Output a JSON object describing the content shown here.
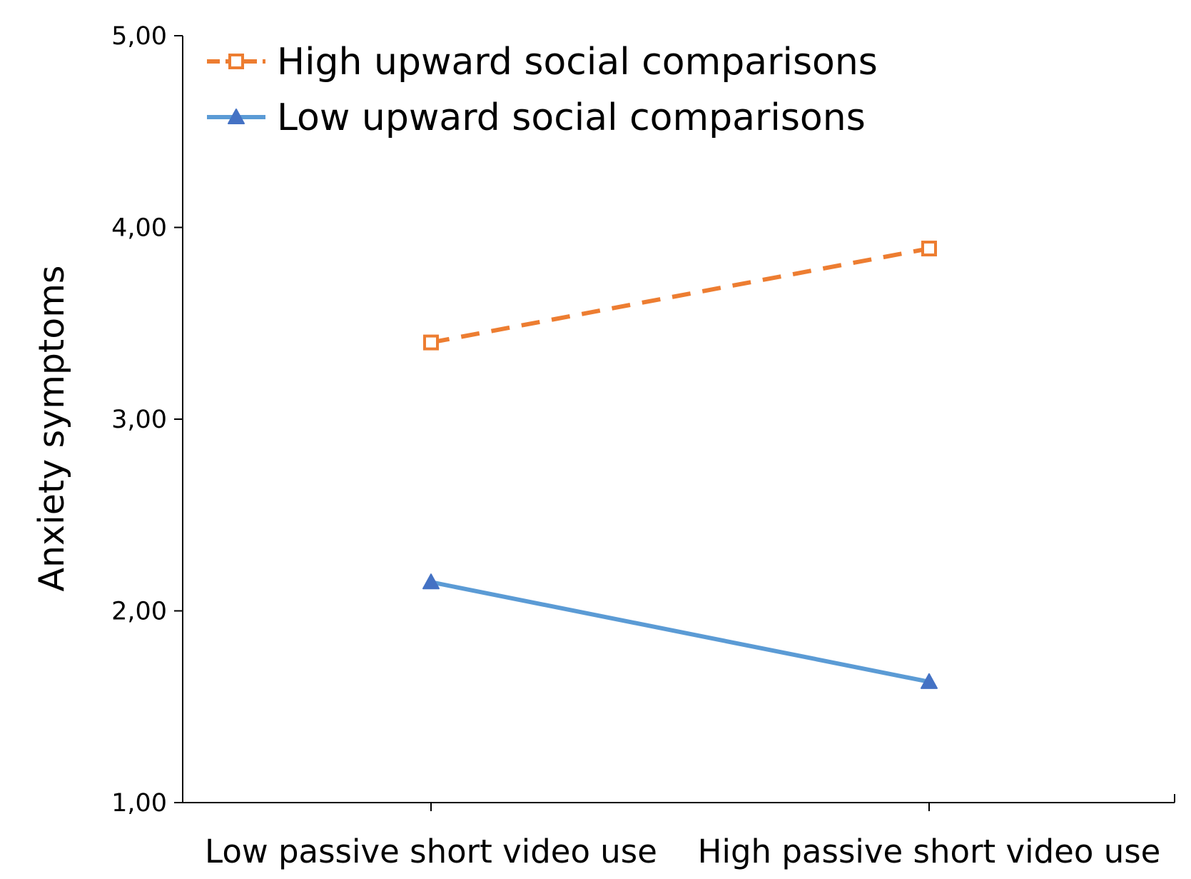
{
  "chart_data": {
    "type": "line",
    "title": "",
    "xlabel": "",
    "ylabel": "Anxiety symptoms",
    "ylim": [
      1.0,
      5.0
    ],
    "y_ticks": [
      "1,00",
      "2,00",
      "3,00",
      "4,00",
      "5,00"
    ],
    "y_tick_values": [
      1.0,
      2.0,
      3.0,
      4.0,
      5.0
    ],
    "categories": [
      "Low passive short video use",
      "High passive short video use"
    ],
    "grid": false,
    "legend_position": "top-left",
    "series": [
      {
        "name": "High upward social comparisons",
        "values": [
          3.4,
          3.89
        ],
        "color": "#ED7D31",
        "line_style": "dashed",
        "marker": "square-open"
      },
      {
        "name": "Low upward social comparisons",
        "values": [
          2.15,
          1.63
        ],
        "color": "#5B9BD5",
        "marker_color": "#4472C4",
        "line_style": "solid",
        "marker": "triangle"
      }
    ]
  }
}
